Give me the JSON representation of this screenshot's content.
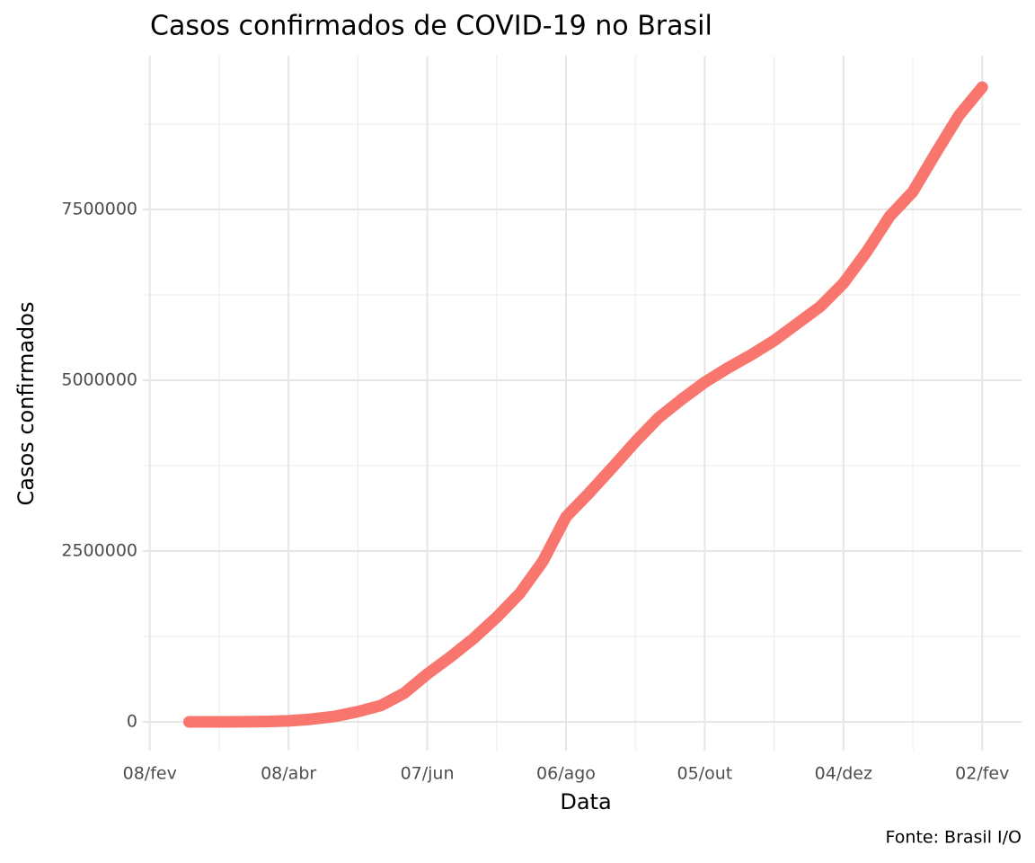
{
  "chart_data": {
    "type": "line",
    "title": "Casos confirmados de COVID-19 no Brasil",
    "x_label": "Data",
    "y_label": "Casos confirmados",
    "caption": "Fonte: Brasil I/O",
    "x": [
      17,
      30,
      40,
      50,
      60,
      70,
      80,
      90,
      100,
      110,
      120,
      130,
      140,
      150,
      160,
      170,
      180,
      190,
      200,
      210,
      220,
      230,
      240,
      250,
      260,
      270,
      280,
      290,
      300,
      310,
      320,
      330,
      340,
      350,
      360
    ],
    "series": [
      {
        "name": "Casos confirmados",
        "color": "#f8766d",
        "values": [
          0,
          100,
          1000,
          5000,
          15000,
          40000,
          80000,
          150000,
          240000,
          420000,
          700000,
          950000,
          1220000,
          1530000,
          1880000,
          2350000,
          3000000,
          3350000,
          3720000,
          4100000,
          4450000,
          4720000,
          4970000,
          5180000,
          5370000,
          5580000,
          5830000,
          6080000,
          6420000,
          6880000,
          7400000,
          7760000,
          8330000,
          8880000,
          9290000
        ]
      }
    ],
    "xlim": [
      -3,
      377
    ],
    "ylim": [
      -421000,
      9750000
    ],
    "xticks": [
      {
        "value": 0,
        "label": "08/fev"
      },
      {
        "value": 60,
        "label": "08/abr"
      },
      {
        "value": 120,
        "label": "07/jun"
      },
      {
        "value": 180,
        "label": "06/ago"
      },
      {
        "value": 240,
        "label": "05/out"
      },
      {
        "value": 300,
        "label": "04/dez"
      },
      {
        "value": 360,
        "label": "02/fev"
      }
    ],
    "yticks": [
      0,
      2500000,
      5000000,
      7500000
    ],
    "grid": true
  }
}
